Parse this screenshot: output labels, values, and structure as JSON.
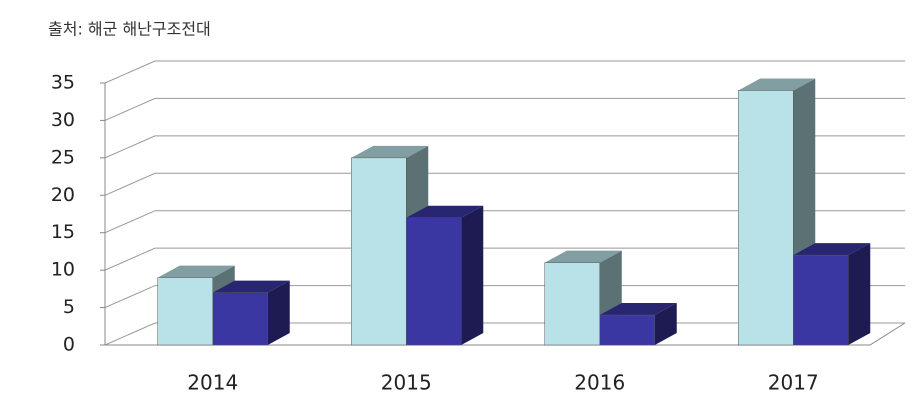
{
  "chart_data": {
    "type": "bar3d",
    "title": "출처: 해군 해난구조전대",
    "categories": [
      "2014",
      "2015",
      "2016",
      "2017"
    ],
    "series": [
      {
        "color": "#b8e2e8",
        "values": [
          9,
          25,
          11,
          34
        ]
      },
      {
        "color": "#3a36a2",
        "values": [
          7,
          17,
          4,
          12
        ]
      }
    ],
    "ylim": [
      0,
      35
    ],
    "yticks": [
      0,
      5,
      10,
      15,
      20,
      25,
      30,
      35
    ],
    "grid": true
  }
}
